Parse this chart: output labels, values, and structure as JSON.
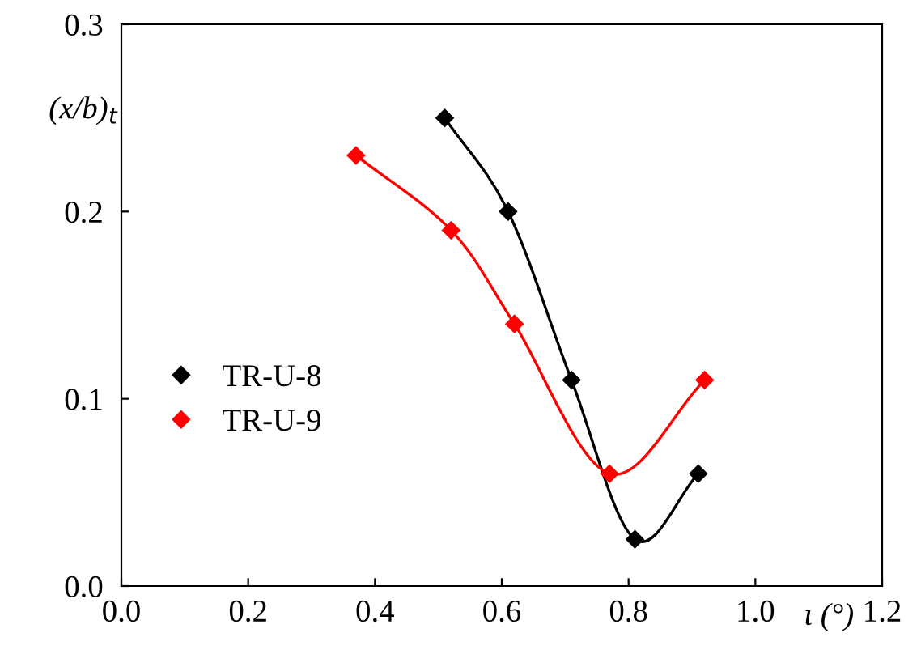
{
  "chart_data": {
    "type": "line",
    "xlabel": "ι (°)",
    "ylabel": "(x/b)$_{t}$",
    "series": [
      {
        "name": "TR-U-8",
        "color": "#000000",
        "x": [
          0.51,
          0.61,
          0.71,
          0.81,
          0.91
        ],
        "values": [
          0.25,
          0.2,
          0.11,
          0.025,
          0.06
        ]
      },
      {
        "name": "TR-U-9",
        "color": "#ff0000",
        "x": [
          0.37,
          0.52,
          0.62,
          0.77,
          0.92
        ],
        "values": [
          0.23,
          0.19,
          0.14,
          0.06,
          0.11
        ]
      }
    ],
    "xlim": [
      0,
      1.2
    ],
    "ylim": [
      0,
      0.3
    ],
    "xticks": [
      {
        "value": 0,
        "label": "0.0"
      },
      0.2,
      0.4,
      0.6,
      0.8,
      {
        "value": 1,
        "label": "1.0"
      },
      1.2
    ],
    "yticks": [
      {
        "value": 0,
        "label": "0.0"
      },
      0.1,
      0.2,
      0.3
    ],
    "marker": "diamond",
    "line_style": "solid",
    "grid": false,
    "legend": "left"
  }
}
